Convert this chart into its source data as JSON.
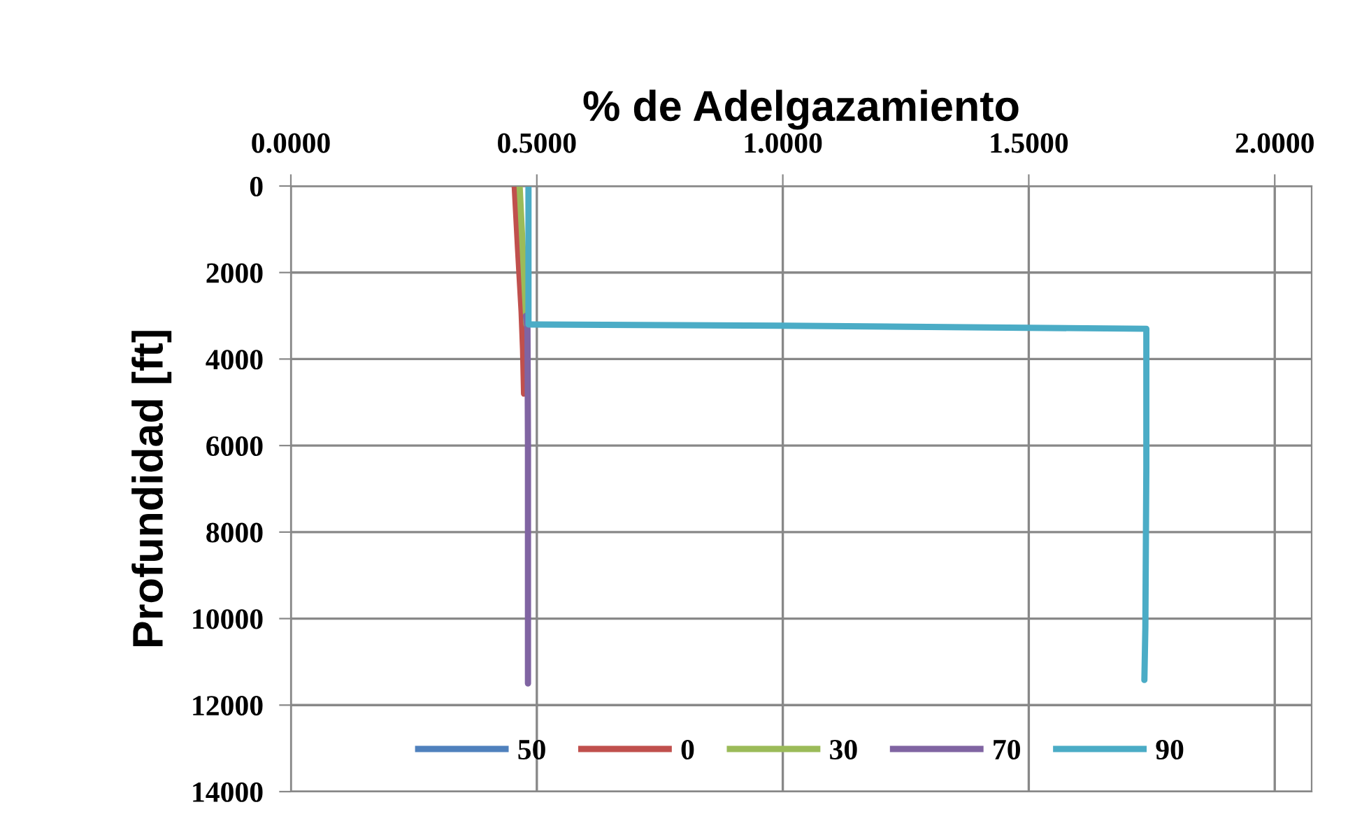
{
  "chart_data": {
    "type": "line",
    "xlabel": "% de Adelgazamiento",
    "ylabel": "Profundidad [ft]",
    "xlim": [
      0,
      2.075
    ],
    "xticks": [
      {
        "value": 0,
        "label": "0.0000"
      },
      {
        "value": 0.5,
        "label": "0.5000"
      },
      {
        "value": 1.0,
        "label": "1.0000"
      },
      {
        "value": 1.5,
        "label": "1.5000"
      },
      {
        "value": 2.0,
        "label": "2.0000"
      }
    ],
    "ylim": [
      14000,
      0
    ],
    "yticks": [
      0,
      2000,
      4000,
      6000,
      8000,
      10000,
      12000,
      14000
    ],
    "grid": true,
    "legend": "bottom",
    "line_style": "solid",
    "marker": "none",
    "series": [
      {
        "name": "50",
        "color": "#4f81bd"
      },
      {
        "name": "0",
        "color": "#c0504d",
        "x": [
          0.455,
          0.462,
          0.469,
          0.472,
          0.474
        ],
        "values": [
          0,
          1500,
          2900,
          3800,
          4800
        ]
      },
      {
        "name": "30",
        "color": "#9bbb59",
        "x": [
          0.465,
          0.472,
          0.479
        ],
        "values": [
          0,
          1600,
          3200
        ]
      },
      {
        "name": "70",
        "color": "#8064a2",
        "x": [
          0.478,
          0.481,
          0.482,
          0.482
        ],
        "values": [
          3000,
          3300,
          6000,
          11500
        ]
      },
      {
        "name": "90",
        "color": "#4bacc6",
        "x": [
          0.483,
          0.483,
          1.0,
          1.739,
          1.739,
          1.737,
          1.735
        ],
        "values": [
          0,
          3200,
          3230,
          3300,
          6500,
          10200,
          11420
        ]
      }
    ]
  }
}
